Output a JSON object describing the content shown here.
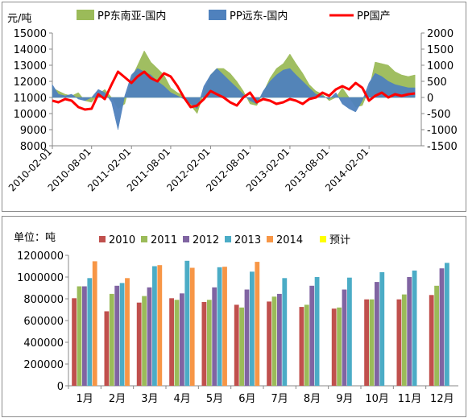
{
  "chart_data": [
    {
      "type": "area",
      "y_unit_label": "元/吨",
      "legend": {
        "placement": "top"
      },
      "ylim_left": [
        8000,
        15000
      ],
      "yticks_left": [
        8000,
        9000,
        10000,
        11000,
        12000,
        13000,
        14000,
        15000
      ],
      "ylim_right": [
        -1500,
        2000
      ],
      "yticks_right": [
        -1500,
        -1000,
        -500,
        0,
        500,
        1000,
        1500,
        2000
      ],
      "xlim": [
        "2010-02-01",
        "2014-09-30"
      ],
      "xticks": [
        "2010-02-01",
        "2010-08-01",
        "2011-02-01",
        "2011-08-01",
        "2012-02-01",
        "2012-08-01",
        "2013-02-01",
        "2013-08-01",
        "2014-02-01"
      ],
      "grid": false,
      "series": [
        {
          "name": "PP东南亚-国内",
          "axis": "right",
          "kind": "area",
          "color": "#9bbb59",
          "points": [
            [
              "2010-02-01",
              300
            ],
            [
              "2010-03-01",
              200
            ],
            [
              "2010-04-01",
              100
            ],
            [
              "2010-05-01",
              50
            ],
            [
              "2010-06-01",
              150
            ],
            [
              "2010-07-01",
              -100
            ],
            [
              "2010-08-01",
              -150
            ],
            [
              "2010-09-01",
              100
            ],
            [
              "2010-10-01",
              250
            ],
            [
              "2010-11-01",
              0
            ],
            [
              "2010-12-01",
              -350
            ],
            [
              "2011-01-01",
              -200
            ],
            [
              "2011-02-01",
              600
            ],
            [
              "2011-03-01",
              1000
            ],
            [
              "2011-04-01",
              1450
            ],
            [
              "2011-05-01",
              1100
            ],
            [
              "2011-06-01",
              900
            ],
            [
              "2011-07-01",
              700
            ],
            [
              "2011-08-01",
              300
            ],
            [
              "2011-09-01",
              150
            ],
            [
              "2011-10-01",
              50
            ],
            [
              "2011-11-01",
              -250
            ],
            [
              "2011-12-01",
              -500
            ],
            [
              "2012-01-01",
              150
            ],
            [
              "2012-02-01",
              700
            ],
            [
              "2012-03-01",
              900
            ],
            [
              "2012-04-01",
              900
            ],
            [
              "2012-05-01",
              750
            ],
            [
              "2012-06-01",
              500
            ],
            [
              "2012-07-01",
              200
            ],
            [
              "2012-08-01",
              -200
            ],
            [
              "2012-09-01",
              -250
            ],
            [
              "2012-10-01",
              150
            ],
            [
              "2012-11-01",
              600
            ],
            [
              "2012-12-01",
              900
            ],
            [
              "2013-01-01",
              1050
            ],
            [
              "2013-02-01",
              1350
            ],
            [
              "2013-03-01",
              1050
            ],
            [
              "2013-04-01",
              750
            ],
            [
              "2013-05-01",
              400
            ],
            [
              "2013-06-01",
              200
            ],
            [
              "2013-07-01",
              100
            ],
            [
              "2013-08-01",
              -100
            ],
            [
              "2013-09-01",
              0
            ],
            [
              "2013-10-01",
              300
            ],
            [
              "2013-11-01",
              0
            ],
            [
              "2013-12-01",
              -300
            ],
            [
              "2014-01-01",
              -250
            ],
            [
              "2014-02-01",
              250
            ],
            [
              "2014-03-01",
              1100
            ],
            [
              "2014-04-01",
              1050
            ],
            [
              "2014-05-01",
              1000
            ],
            [
              "2014-06-01",
              800
            ],
            [
              "2014-07-01",
              700
            ],
            [
              "2014-08-01",
              650
            ],
            [
              "2014-09-01",
              700
            ]
          ]
        },
        {
          "name": "PP远东-国内",
          "axis": "right",
          "kind": "area",
          "color": "#4f81bd",
          "points": [
            [
              "2010-02-01",
              400
            ],
            [
              "2010-03-01",
              100
            ],
            [
              "2010-04-01",
              50
            ],
            [
              "2010-05-01",
              100
            ],
            [
              "2010-06-01",
              -50
            ],
            [
              "2010-07-01",
              -100
            ],
            [
              "2010-08-01",
              0
            ],
            [
              "2010-09-01",
              250
            ],
            [
              "2010-10-01",
              150
            ],
            [
              "2010-11-01",
              -150
            ],
            [
              "2010-12-01",
              -1000
            ],
            [
              "2011-01-01",
              50
            ],
            [
              "2011-02-01",
              700
            ],
            [
              "2011-03-01",
              900
            ],
            [
              "2011-04-01",
              800
            ],
            [
              "2011-05-01",
              700
            ],
            [
              "2011-06-01",
              500
            ],
            [
              "2011-07-01",
              350
            ],
            [
              "2011-08-01",
              150
            ],
            [
              "2011-09-01",
              50
            ],
            [
              "2011-10-01",
              -50
            ],
            [
              "2011-11-01",
              -200
            ],
            [
              "2011-12-01",
              -350
            ],
            [
              "2012-01-01",
              350
            ],
            [
              "2012-02-01",
              700
            ],
            [
              "2012-03-01",
              900
            ],
            [
              "2012-04-01",
              700
            ],
            [
              "2012-05-01",
              500
            ],
            [
              "2012-06-01",
              300
            ],
            [
              "2012-07-01",
              100
            ],
            [
              "2012-08-01",
              -100
            ],
            [
              "2012-09-01",
              -200
            ],
            [
              "2012-10-01",
              200
            ],
            [
              "2012-11-01",
              500
            ],
            [
              "2012-12-01",
              700
            ],
            [
              "2013-01-01",
              850
            ],
            [
              "2013-02-01",
              900
            ],
            [
              "2013-03-01",
              700
            ],
            [
              "2013-04-01",
              500
            ],
            [
              "2013-05-01",
              300
            ],
            [
              "2013-06-01",
              100
            ],
            [
              "2013-07-01",
              50
            ],
            [
              "2013-08-01",
              -50
            ],
            [
              "2013-09-01",
              150
            ],
            [
              "2013-10-01",
              -200
            ],
            [
              "2013-11-01",
              -350
            ],
            [
              "2013-12-01",
              -450
            ],
            [
              "2014-01-01",
              -100
            ],
            [
              "2014-02-01",
              450
            ],
            [
              "2014-03-01",
              750
            ],
            [
              "2014-04-01",
              650
            ],
            [
              "2014-05-01",
              500
            ],
            [
              "2014-06-01",
              400
            ],
            [
              "2014-07-01",
              350
            ],
            [
              "2014-08-01",
              300
            ],
            [
              "2014-09-01",
              300
            ]
          ]
        },
        {
          "name": "PP国产",
          "axis": "left",
          "kind": "line",
          "color": "#ff0000",
          "points": [
            [
              "2010-02-01",
              10800
            ],
            [
              "2010-03-01",
              10700
            ],
            [
              "2010-04-01",
              10900
            ],
            [
              "2010-05-01",
              10800
            ],
            [
              "2010-06-01",
              10400
            ],
            [
              "2010-07-01",
              10250
            ],
            [
              "2010-08-01",
              10300
            ],
            [
              "2010-09-01",
              11200
            ],
            [
              "2010-10-01",
              10900
            ],
            [
              "2010-11-01",
              11800
            ],
            [
              "2010-12-01",
              12600
            ],
            [
              "2011-01-01",
              12250
            ],
            [
              "2011-02-01",
              11900
            ],
            [
              "2011-03-01",
              12300
            ],
            [
              "2011-04-01",
              12600
            ],
            [
              "2011-05-01",
              12200
            ],
            [
              "2011-06-01",
              12000
            ],
            [
              "2011-07-01",
              12500
            ],
            [
              "2011-08-01",
              12300
            ],
            [
              "2011-09-01",
              11700
            ],
            [
              "2011-10-01",
              11000
            ],
            [
              "2011-11-01",
              10400
            ],
            [
              "2011-12-01",
              10500
            ],
            [
              "2012-01-01",
              10900
            ],
            [
              "2012-02-01",
              11400
            ],
            [
              "2012-03-01",
              11200
            ],
            [
              "2012-04-01",
              11000
            ],
            [
              "2012-05-01",
              10700
            ],
            [
              "2012-06-01",
              10500
            ],
            [
              "2012-07-01",
              11000
            ],
            [
              "2012-08-01",
              11300
            ],
            [
              "2012-09-01",
              10700
            ],
            [
              "2012-10-01",
              10900
            ],
            [
              "2012-11-01",
              10800
            ],
            [
              "2012-12-01",
              10600
            ],
            [
              "2013-01-01",
              10700
            ],
            [
              "2013-02-01",
              10900
            ],
            [
              "2013-03-01",
              10800
            ],
            [
              "2013-04-01",
              10600
            ],
            [
              "2013-05-01",
              10900
            ],
            [
              "2013-06-01",
              11000
            ],
            [
              "2013-07-01",
              11300
            ],
            [
              "2013-08-01",
              11100
            ],
            [
              "2013-09-01",
              11500
            ],
            [
              "2013-10-01",
              11700
            ],
            [
              "2013-11-01",
              11500
            ],
            [
              "2013-12-01",
              11900
            ],
            [
              "2014-01-01",
              11600
            ],
            [
              "2014-02-01",
              10800
            ],
            [
              "2014-03-01",
              11100
            ],
            [
              "2014-04-01",
              11300
            ],
            [
              "2014-05-01",
              11000
            ],
            [
              "2014-06-01",
              11200
            ],
            [
              "2014-07-01",
              11100
            ],
            [
              "2014-08-01",
              11200
            ],
            [
              "2014-09-01",
              11250
            ]
          ]
        }
      ]
    },
    {
      "type": "bar",
      "y_unit_label": "单位：吨",
      "legend": {
        "placement": "top"
      },
      "ylim": [
        0,
        1200000
      ],
      "yticks": [
        0,
        200000,
        400000,
        600000,
        800000,
        1000000,
        1200000
      ],
      "grid": false,
      "categories": [
        "1月",
        "2月",
        "3月",
        "4月",
        "5月",
        "6月",
        "7月",
        "8月",
        "9月",
        "10月",
        "11月",
        "12月"
      ],
      "series": [
        {
          "name": "2010",
          "color": "#c0504d",
          "values": [
            805000,
            685000,
            765000,
            805000,
            770000,
            745000,
            775000,
            725000,
            710000,
            795000,
            795000,
            835000
          ]
        },
        {
          "name": "2011",
          "color": "#9bbb59",
          "values": [
            915000,
            845000,
            825000,
            790000,
            790000,
            720000,
            820000,
            745000,
            720000,
            795000,
            840000,
            920000
          ]
        },
        {
          "name": "2012",
          "color": "#8064a2",
          "values": [
            915000,
            920000,
            905000,
            850000,
            905000,
            885000,
            845000,
            920000,
            885000,
            955000,
            1000000,
            1080000
          ]
        },
        {
          "name": "2013",
          "color": "#4bacc6",
          "values": [
            990000,
            945000,
            1100000,
            1150000,
            1090000,
            1050000,
            990000,
            1000000,
            995000,
            1045000,
            1060000,
            1130000
          ]
        },
        {
          "name": "2014",
          "color": "#f79646",
          "values": [
            1145000,
            990000,
            1110000,
            1085000,
            1095000,
            1140000,
            null,
            null,
            null,
            null,
            null,
            null
          ]
        },
        {
          "name": "预计",
          "color": "#ffff00",
          "values": [
            null,
            null,
            null,
            null,
            null,
            null,
            null,
            null,
            null,
            null,
            null,
            null
          ]
        }
      ]
    }
  ]
}
